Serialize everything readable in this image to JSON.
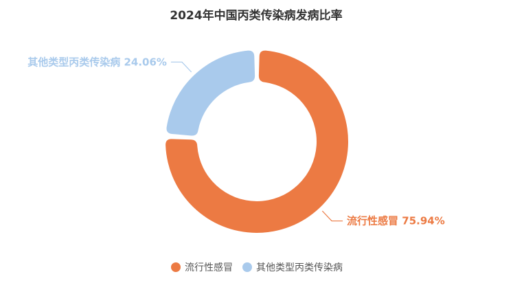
{
  "chart_data": {
    "type": "pie",
    "variant": "donut",
    "title": "2024年中国丙类传染病发病比率",
    "start_angle_deg": 90,
    "series": [
      {
        "name": "流行性感冒",
        "value": 75.94,
        "label": "75.94%",
        "color": "#EC7A43"
      },
      {
        "name": "其他类型丙类传染病",
        "value": 24.06,
        "label": "24.06%",
        "color": "#A9CAEC"
      }
    ],
    "legend": {
      "placement": "bottom",
      "entries": [
        "流行性感冒",
        "其他类型丙类传染病"
      ]
    }
  }
}
